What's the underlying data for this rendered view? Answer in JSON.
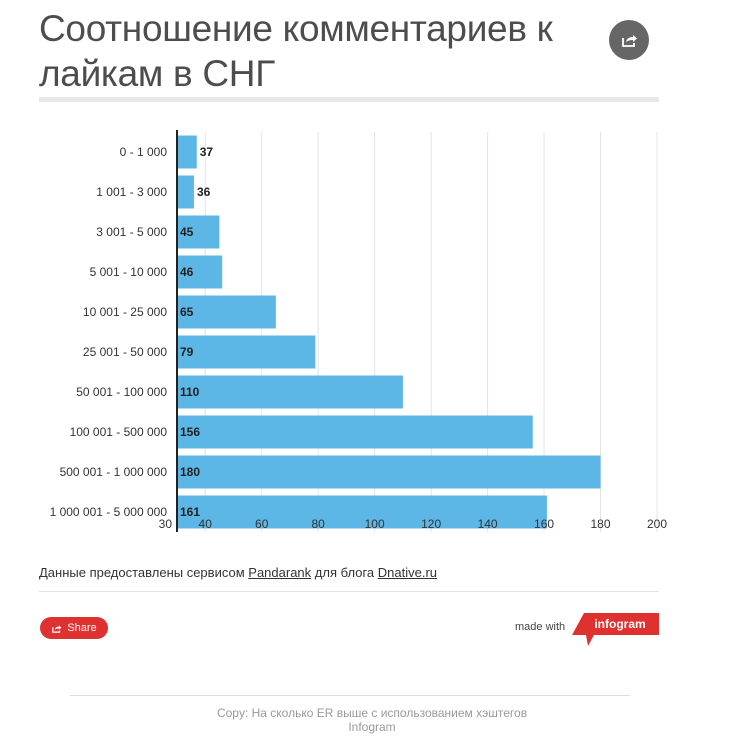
{
  "title": "Соотношение комментариев к лайкам в СНГ",
  "colors": {
    "bar": "#5cb6e6",
    "share": "#e03131",
    "grid": "#e4e4e4",
    "axis": "#222222"
  },
  "chart_data": {
    "type": "bar",
    "orientation": "horizontal",
    "categories": [
      "0 - 1 000",
      "1 001 - 3 000",
      "3 001 - 5 000",
      "5 001 - 10 000",
      "10 001 - 25 000",
      "25 001 - 50 000",
      "50 001 - 100 000",
      "100 001 - 500 000",
      "500 001 - 1 000 000",
      "1 000 001 - 5 000 000"
    ],
    "values": [
      37,
      36,
      45,
      46,
      65,
      79,
      110,
      156,
      180,
      161
    ],
    "xlim": [
      30,
      200
    ],
    "xticks": [
      30,
      40,
      60,
      80,
      100,
      120,
      140,
      160,
      180,
      200
    ],
    "grid": true,
    "data_labels": true
  },
  "source": {
    "prefix": "Данные предоставлены сервисом",
    "link1": "Pandarank",
    "middle": "для блога",
    "link2": "Dnative.ru"
  },
  "share_label": "Share",
  "made_with": "made with",
  "brand": "infogram",
  "icons": {
    "share_circle": "share-icon",
    "share_button": "share-icon"
  },
  "footer": {
    "line1": "Copy: На сколько ER выше с использованием хэштегов",
    "line2": "Infogram"
  }
}
